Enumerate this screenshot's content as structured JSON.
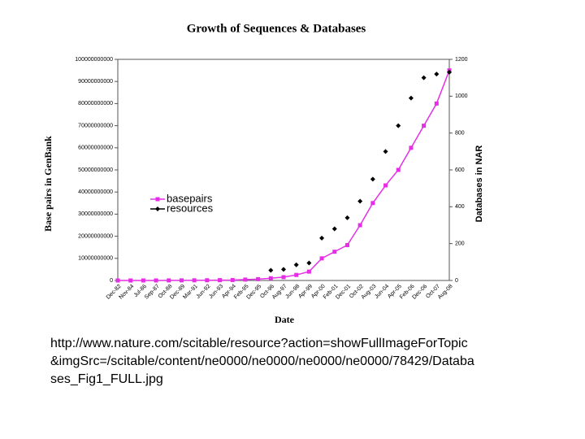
{
  "chart_data": {
    "type": "line",
    "title": "Growth of Sequences & Databases",
    "x_label": "Date",
    "y_label": "Base pairs in GenBank",
    "y2_label": "Databases in NAR",
    "categories": [
      "Dec-82",
      "Nov-84",
      "Jul-86",
      "Sep-87",
      "Oct-88",
      "Dec-89",
      "Mar-91",
      "Jun-92",
      "Jun-93",
      "Apr-94",
      "Feb-95",
      "Dec-95",
      "Oct-96",
      "Aug-97",
      "Jun-98",
      "Apr-99",
      "Apr-00",
      "Feb-01",
      "Dec-01",
      "Oct-02",
      "Aug-03",
      "Jun-04",
      "Apr-05",
      "Feb-06",
      "Dec-06",
      "Oct-07",
      "Aug-08"
    ],
    "series": [
      {
        "name": "basepairs",
        "color": "#e62ee6",
        "marker": "square",
        "line": true,
        "values": [
          0,
          0,
          10000000,
          20000000,
          30000000,
          50000000,
          70000000,
          100000000,
          150000000,
          200000000,
          400000000,
          600000000,
          1000000000,
          1500000000,
          2500000000,
          4000000000,
          10000000000,
          13000000000,
          16000000000,
          25000000000,
          35000000000,
          43000000000,
          50000000000,
          60000000000,
          70000000000,
          80000000000,
          95000000000
        ]
      },
      {
        "name": "resources",
        "color": "#000000",
        "marker": "diamond",
        "line": false,
        "axis": "y2",
        "values": [
          null,
          null,
          null,
          null,
          null,
          null,
          null,
          null,
          null,
          null,
          null,
          null,
          55,
          60,
          85,
          95,
          230,
          280,
          340,
          430,
          550,
          700,
          840,
          990,
          1100,
          1120,
          1130
        ]
      }
    ],
    "ylim": [
      0,
      100000000000
    ],
    "yticks": [
      0,
      10000000000,
      20000000000,
      30000000000,
      40000000000,
      50000000000,
      60000000000,
      70000000000,
      80000000000,
      90000000000,
      100000000000
    ],
    "y2lim": [
      0,
      1200
    ],
    "y2ticks": [
      0,
      200,
      400,
      600,
      800,
      1000,
      1200
    ],
    "legend": "center"
  },
  "caption": [
    "http://www.nature.com/scitable/resource?action=showFullImageForTopic",
    "&imgSrc=/scitable/content/ne0000/ne0000/ne0000/ne0000/78429/Databa",
    "ses_Fig1_FULL.jpg"
  ]
}
